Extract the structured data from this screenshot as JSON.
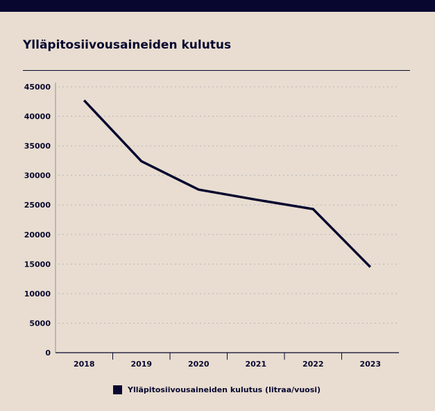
{
  "colors": {
    "background": "#e8ddd0",
    "ink": "#07072f",
    "grid": "#b8b3b8",
    "axis": "#8f8fa3"
  },
  "title": "Ylläpitosiivousaineiden kulutus",
  "chart_data": {
    "type": "line",
    "title": "Ylläpitosiivousaineiden kulutus",
    "xlabel": "",
    "ylabel": "",
    "categories": [
      "2018",
      "2019",
      "2020",
      "2021",
      "2022",
      "2023"
    ],
    "ylim": [
      0,
      45000
    ],
    "yticks": [
      0,
      5000,
      10000,
      15000,
      20000,
      25000,
      30000,
      35000,
      40000,
      45000
    ],
    "grid": "horizontal dotted",
    "legend_position": "bottom",
    "series": [
      {
        "name": "Ylläpitosiivousaineiden kulutus (litraa/vuosi)",
        "color": "#07072f",
        "values": [
          42700,
          32400,
          27600,
          25900,
          24300,
          14500
        ]
      }
    ]
  }
}
